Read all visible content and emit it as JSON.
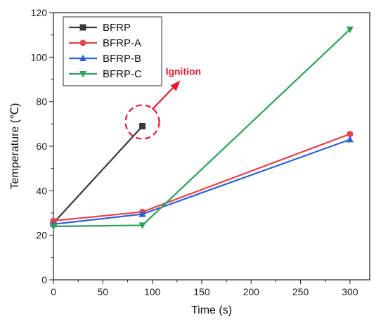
{
  "chart_data": {
    "type": "line",
    "title": "",
    "xlabel": "Time (s)",
    "ylabel": "Temperature (℃)",
    "xlim": [
      0,
      320
    ],
    "ylim": [
      0,
      120
    ],
    "xticks": [
      0,
      50,
      100,
      150,
      200,
      250,
      300
    ],
    "yticks": [
      0,
      20,
      40,
      60,
      80,
      100,
      120
    ],
    "grid": false,
    "legend_position": "top-left",
    "series": [
      {
        "name": "BFRP",
        "color": "#3a3a3a",
        "marker": "square",
        "points": [
          [
            0,
            25.5
          ],
          [
            90,
            69
          ]
        ]
      },
      {
        "name": "BFRP-A",
        "color": "#e8434b",
        "marker": "circle",
        "points": [
          [
            0,
            26.5
          ],
          [
            90,
            30.5
          ],
          [
            300,
            65.5
          ]
        ]
      },
      {
        "name": "BFRP-B",
        "color": "#2a62d6",
        "marker": "triangle-up",
        "points": [
          [
            0,
            25
          ],
          [
            90,
            29.5
          ],
          [
            300,
            63
          ]
        ]
      },
      {
        "name": "BFRP-C",
        "color": "#2ca05a",
        "marker": "triangle-down",
        "points": [
          [
            0,
            24
          ],
          [
            90,
            24.5
          ],
          [
            300,
            112.5
          ]
        ]
      }
    ],
    "annotation": {
      "text": "Ignition",
      "color": "#e8192c",
      "x": 90,
      "y": 69
    }
  }
}
